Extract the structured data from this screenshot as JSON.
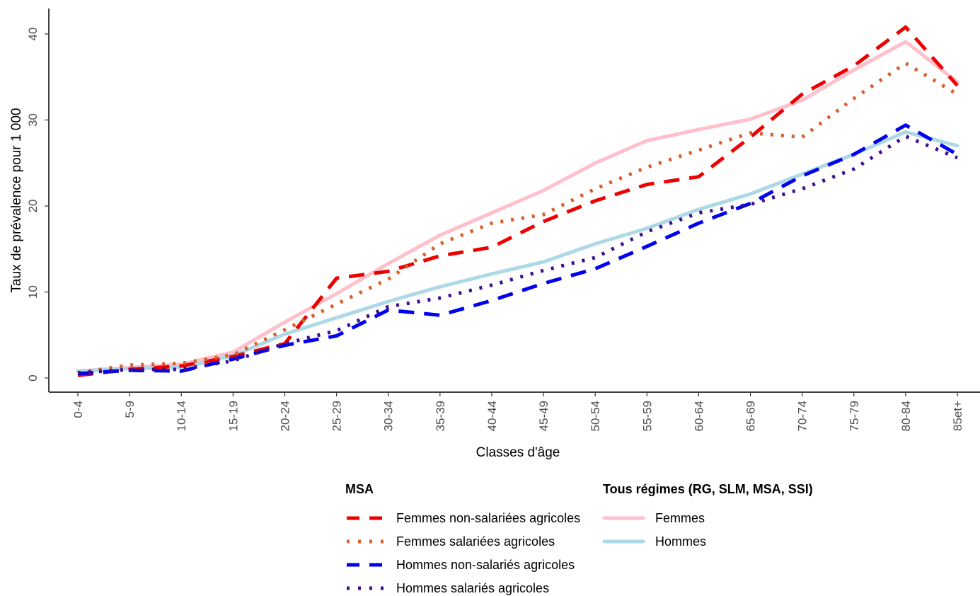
{
  "chart_data": {
    "type": "line",
    "title": "",
    "xlabel": "Classes d'âge",
    "ylabel": "Taux de prévalence pour 1 000",
    "ylim": [
      0,
      41
    ],
    "yticks": [
      0,
      10,
      20,
      30,
      40
    ],
    "grid": false,
    "legend_position": "bottom",
    "categories": [
      "0-4",
      "5-9",
      "10-14",
      "15-19",
      "20-24",
      "25-29",
      "30-34",
      "35-39",
      "40-44",
      "45-49",
      "50-54",
      "55-59",
      "60-64",
      "65-69",
      "70-74",
      "75-79",
      "80-84",
      "85et+"
    ],
    "legend_groups": [
      {
        "title": "MSA",
        "series_names": [
          "Femmes non-salariées agricoles",
          "Femmes salariées agricoles",
          "Hommes non-salariés agricoles",
          "Hommes salariés agricoles"
        ]
      },
      {
        "title": "Tous régimes (RG, SLM, MSA, SSI)",
        "series_names": [
          "Femmes",
          "Hommes"
        ]
      }
    ],
    "series": [
      {
        "name": "Femmes non-salariées agricoles",
        "color": "#ee0000",
        "style": "longdash",
        "values": [
          0.3,
          1.0,
          1.4,
          2.5,
          4.0,
          11.6,
          12.4,
          14.2,
          15.2,
          18.2,
          20.6,
          22.5,
          23.4,
          28.0,
          33.0,
          36.3,
          40.8,
          34.0
        ]
      },
      {
        "name": "Femmes salariées agricoles",
        "color": "#d95f2b",
        "style": "dotted",
        "values": [
          0.6,
          1.5,
          1.7,
          2.7,
          5.6,
          8.6,
          11.5,
          15.6,
          18.0,
          19.0,
          22.0,
          24.5,
          26.5,
          28.5,
          28.0,
          32.5,
          36.6,
          33.0
        ]
      },
      {
        "name": "Hommes non-salariés agricoles",
        "color": "#0000ee",
        "style": "longdash",
        "values": [
          0.5,
          0.9,
          0.8,
          2.2,
          3.8,
          4.9,
          7.9,
          7.3,
          9.0,
          11.0,
          12.7,
          15.3,
          18.0,
          20.3,
          23.5,
          26.0,
          29.4,
          26.0
        ]
      },
      {
        "name": "Hommes salariés agricoles",
        "color": "#3b108c",
        "style": "dotted",
        "values": [
          0.6,
          1.0,
          1.0,
          2.0,
          4.0,
          5.5,
          8.3,
          9.3,
          10.8,
          12.5,
          14.0,
          17.0,
          19.2,
          20.2,
          22.0,
          24.3,
          28.1,
          25.6
        ]
      },
      {
        "name": "Femmes",
        "color": "#ffbfcb",
        "style": "solid",
        "values": [
          0.8,
          1.2,
          1.6,
          3.0,
          6.5,
          9.8,
          13.3,
          16.6,
          19.2,
          21.8,
          25.0,
          27.6,
          28.9,
          30.1,
          32.3,
          35.8,
          39.1,
          34.4
        ]
      },
      {
        "name": "Hommes",
        "color": "#add8e6",
        "style": "solid",
        "values": [
          0.8,
          1.1,
          1.2,
          2.6,
          5.1,
          7.0,
          8.9,
          10.6,
          12.1,
          13.5,
          15.6,
          17.4,
          19.6,
          21.4,
          23.7,
          26.0,
          28.6,
          27.0
        ]
      }
    ]
  }
}
